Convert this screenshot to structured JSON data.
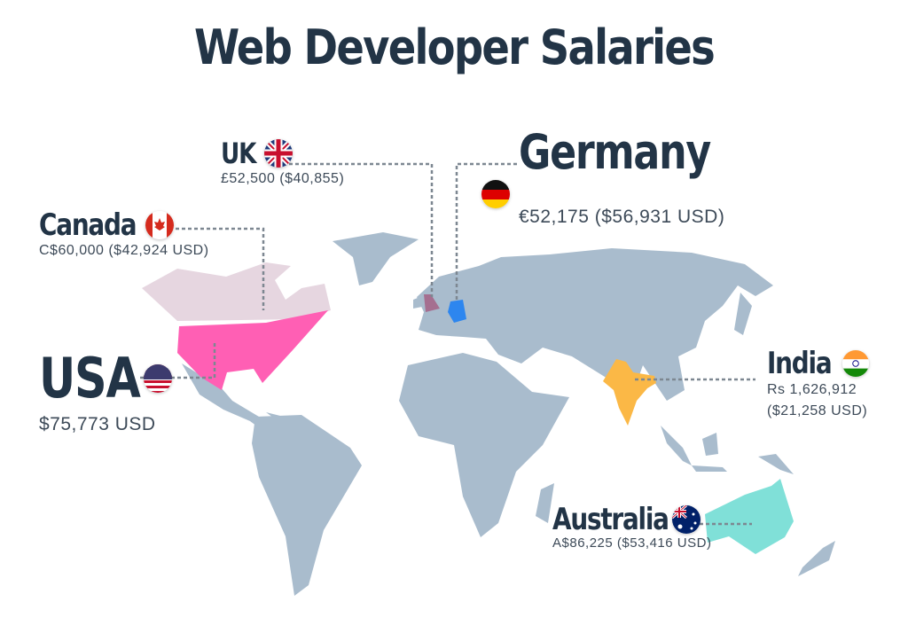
{
  "title": "Web Developer Salaries",
  "colors": {
    "land": "#a9bccd",
    "canada": "#e6d6e0",
    "usa": "#ff5fb4",
    "uk": "#a56f90",
    "germany": "#2d86ef",
    "india": "#fbb846",
    "australia": "#80e0d8",
    "text": "#223446"
  },
  "countries": {
    "uk": {
      "name": "UK",
      "salary": "£52,500 ($40,855)",
      "flag": "uk-flag-icon"
    },
    "germany": {
      "name": "Germany",
      "salary": "€52,175 ($56,931 USD)",
      "flag": "germany-flag-icon"
    },
    "canada": {
      "name": "Canada",
      "salary": "C$60,000 ($42,924 USD)",
      "flag": "canada-flag-icon"
    },
    "usa": {
      "name": "USA",
      "salary": "$75,773 USD",
      "flag": "usa-flag-icon"
    },
    "india": {
      "name": "India",
      "salary_local": "Rs 1,626,912",
      "salary_usd": "($21,258 USD)",
      "flag": "india-flag-icon"
    },
    "australia": {
      "name": "Australia",
      "salary": "A$86,225 ($53,416 USD)",
      "flag": "australia-flag-icon"
    }
  }
}
